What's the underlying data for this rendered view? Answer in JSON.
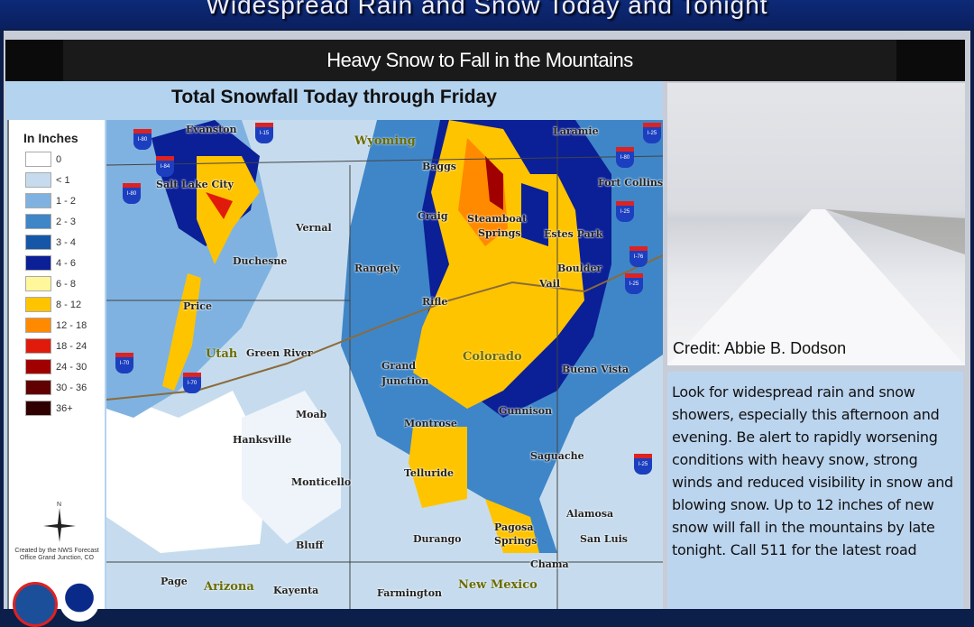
{
  "banner": {
    "title": "Widespread Rain and Snow Today and Tonight"
  },
  "subheader": {
    "title": "Heavy Snow to Fall in the Mountains"
  },
  "map": {
    "title": "Total Snowfall Today through  Friday",
    "legend": {
      "title": "In Inches",
      "items": [
        {
          "label": "0",
          "color": "#ffffff"
        },
        {
          "label": "< 1",
          "color": "#c6dcee"
        },
        {
          "label": "1 - 2",
          "color": "#7fb2e0"
        },
        {
          "label": "2 - 3",
          "color": "#3f86c8"
        },
        {
          "label": "3 - 4",
          "color": "#1656a8"
        },
        {
          "label": "4 - 6",
          "color": "#0b1f96"
        },
        {
          "label": "6 - 8",
          "color": "#fff799"
        },
        {
          "label": "8 - 12",
          "color": "#ffc400"
        },
        {
          "label": "12 - 18",
          "color": "#ff8a00"
        },
        {
          "label": "18 - 24",
          "color": "#e01b0b"
        },
        {
          "label": "24 - 30",
          "color": "#a00000"
        },
        {
          "label": "30 - 36",
          "color": "#600000"
        },
        {
          "label": "36+",
          "color": "#300000"
        }
      ]
    },
    "compass_label": "N",
    "created_by": "Created by the NWS Forecast Office Grand Junction, CO",
    "places": [
      "Evanston",
      "Wyoming",
      "Laramie",
      "Baggs",
      "Fort Collins",
      "Salt Lake City",
      "Vernal",
      "Craig",
      "Steamboat",
      "Springs",
      "Estes Park",
      "Duchesne",
      "Rangely",
      "Boulder",
      "Vail",
      "Price",
      "Rifle",
      "Utah",
      "Green River",
      "Grand",
      "Junction",
      "Colorado",
      "Buena Vista",
      "Moab",
      "Gunnison",
      "Montrose",
      "Hanksville",
      "Saguache",
      "Telluride",
      "Monticello",
      "Alamosa",
      "Pagosa",
      "Springs",
      "Durango",
      "Bluff",
      "San Luis",
      "Chama",
      "Page",
      "Arizona",
      "Kayenta",
      "Farmington",
      "New Mexico"
    ],
    "interstates": [
      "I-80",
      "I-84",
      "I-15",
      "I-80",
      "I-25",
      "I-80",
      "I-25",
      "I-76",
      "I-25",
      "I-70",
      "I-70",
      "I-25"
    ]
  },
  "photo": {
    "credit": "Credit:  Abbie B. Dodson"
  },
  "message": {
    "text": "Look for widespread rain and snow showers, especially this afternoon and evening.  Be alert to rapidly worsening conditions with heavy snow, strong winds and reduced visibility in snow and blowing snow.  Up to 12 inches of new snow will fall in the mountains by late tonight. Call 511 for the latest road"
  }
}
